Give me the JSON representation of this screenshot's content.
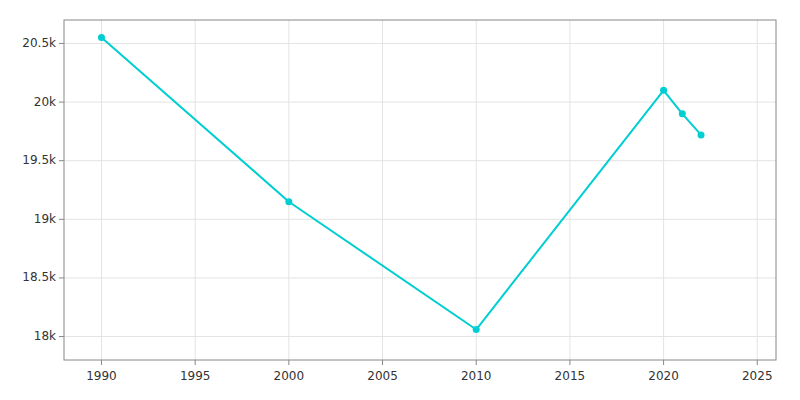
{
  "chart_data": {
    "type": "line",
    "x": [
      1990,
      2000,
      2010,
      2020,
      2021,
      2022
    ],
    "values": [
      20550,
      19150,
      18060,
      20100,
      19900,
      19720
    ],
    "color": "#00CED1",
    "marker": "circle",
    "xlim": [
      1988,
      2026
    ],
    "ylim": [
      17800,
      20700
    ],
    "xticks": [
      1990,
      1995,
      2000,
      2005,
      2010,
      2015,
      2020,
      2025
    ],
    "yticks": [
      {
        "value": 18000,
        "label": "18k"
      },
      {
        "value": 18500,
        "label": "18.5k"
      },
      {
        "value": 19000,
        "label": "19k"
      },
      {
        "value": 19500,
        "label": "19.5k"
      },
      {
        "value": 20000,
        "label": "20k"
      },
      {
        "value": 20500,
        "label": "20.5k"
      }
    ],
    "grid": true
  }
}
